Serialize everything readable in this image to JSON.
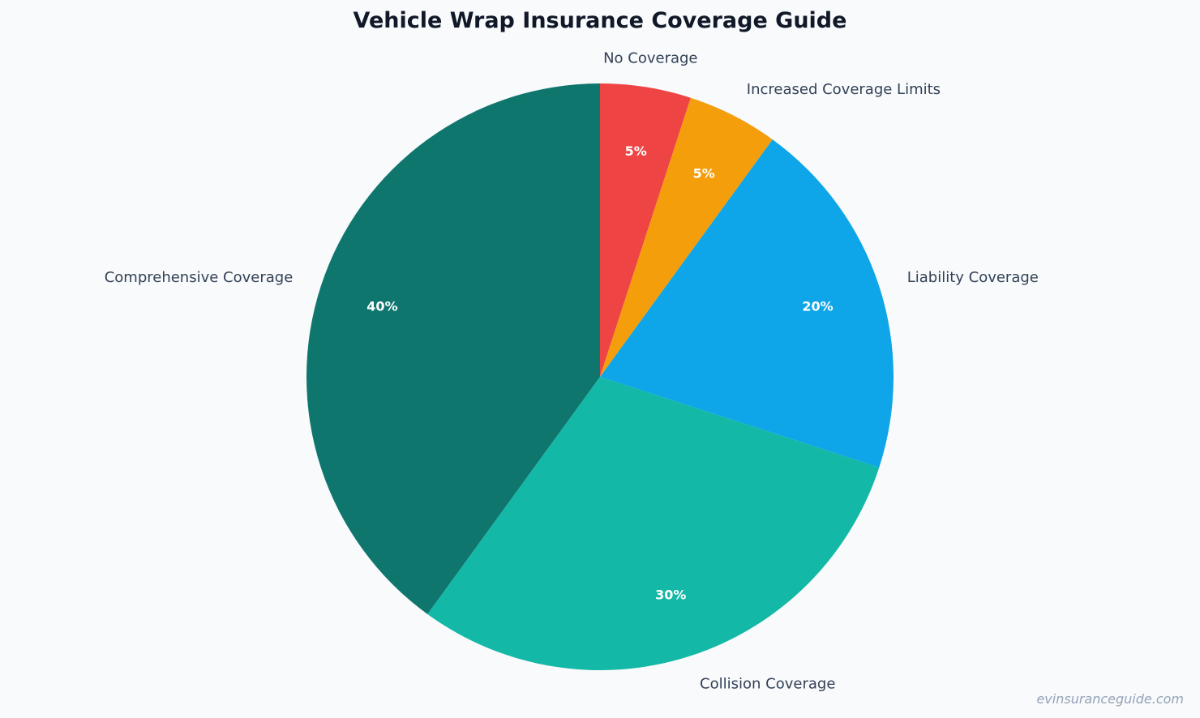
{
  "chart_data": {
    "type": "pie",
    "title": "Vehicle Wrap Insurance Coverage Guide",
    "categories": [
      "No Coverage",
      "Increased Coverage Limits",
      "Liability Coverage",
      "Collision Coverage",
      "Comprehensive Coverage"
    ],
    "values": [
      5,
      5,
      20,
      30,
      40
    ],
    "value_labels": [
      "5%",
      "5%",
      "20%",
      "30%",
      "40%"
    ],
    "colors": [
      "#ef4444",
      "#f59e0b",
      "#0ea5e9",
      "#14b8a6",
      "#0f766e"
    ],
    "start": "top",
    "direction": "clockwise",
    "legend": "none"
  },
  "watermark": "evinsuranceguide.com"
}
